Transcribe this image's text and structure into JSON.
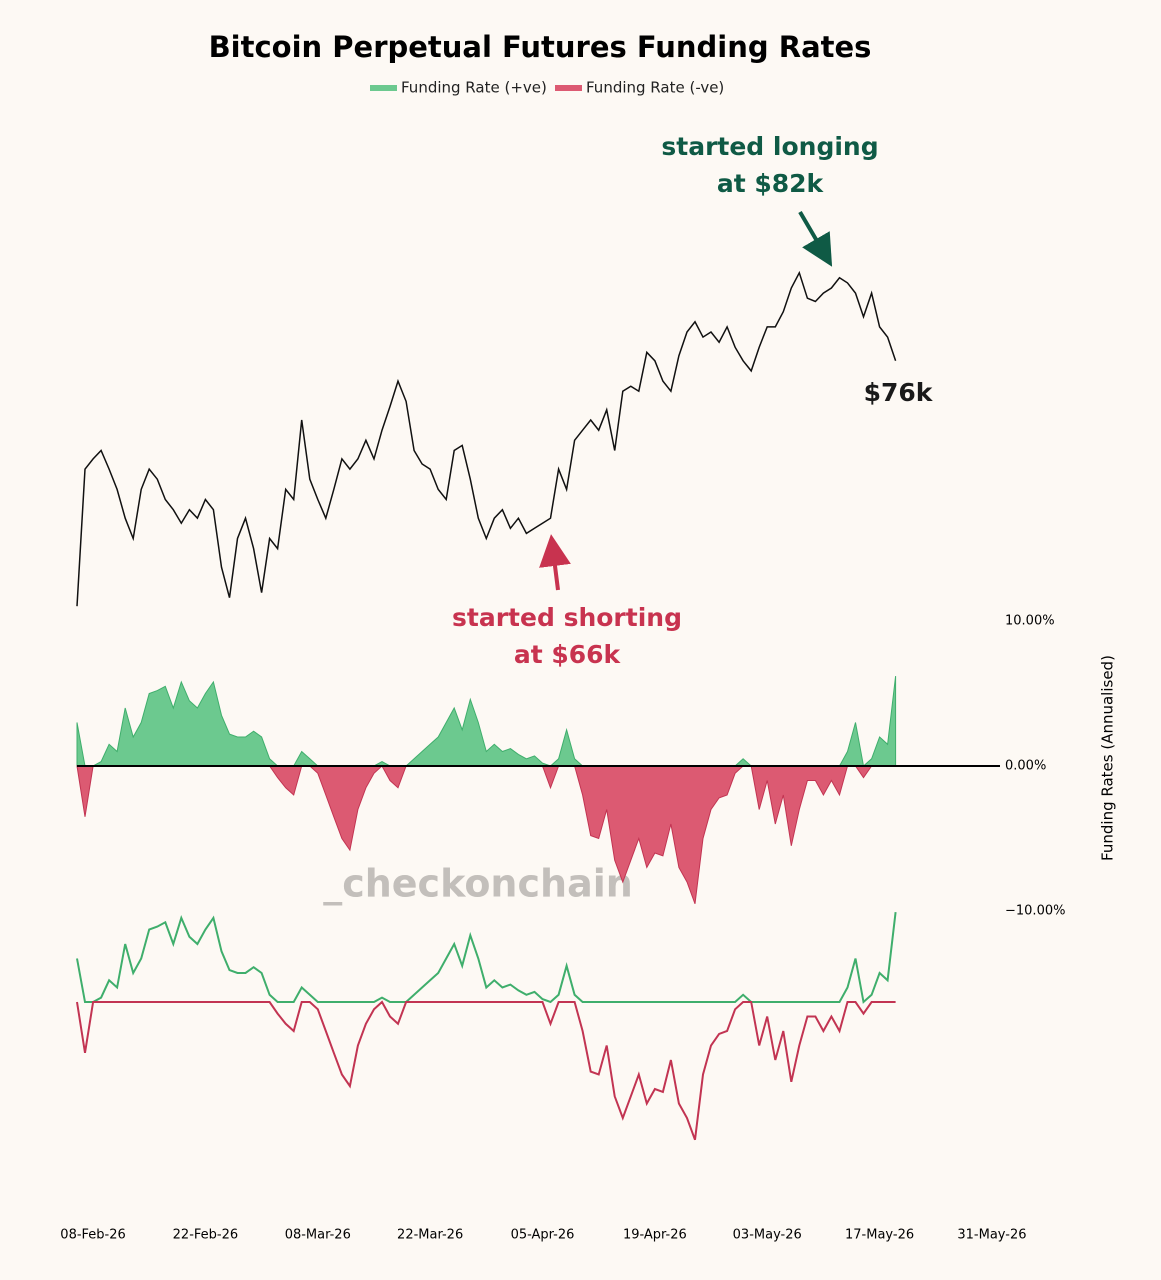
{
  "chart_data": {
    "type": "line",
    "title": "Bitcoin Perpetual Futures Funding Rates",
    "annotations": {
      "longing": [
        "started longing",
        "at $82k"
      ],
      "shorting": [
        "started shorting",
        "at $66k"
      ],
      "last": "$76k"
    },
    "watermark": "_checkonchain",
    "y2label": "Funding Rates (Annualised)",
    "xlim": [
      "2026-02-06",
      "2026-06-02"
    ],
    "xticks": [
      {
        "value": "2026-02-08",
        "label": "08-Feb-26"
      },
      {
        "value": "2026-02-22",
        "label": "22-Feb-26"
      },
      {
        "value": "2026-03-08",
        "label": "08-Mar-26"
      },
      {
        "value": "2026-03-22",
        "label": "22-Mar-26"
      },
      {
        "value": "2026-04-05",
        "label": "05-Apr-26"
      },
      {
        "value": "2026-04-19",
        "label": "19-Apr-26"
      },
      {
        "value": "2026-05-03",
        "label": "03-May-26"
      },
      {
        "value": "2026-05-17",
        "label": "17-May-26"
      },
      {
        "value": "2026-05-31",
        "label": "31-May-26"
      }
    ],
    "y2lim": [
      -10,
      10
    ],
    "y2ticks": [
      {
        "value": 10,
        "label": "10.00%"
      },
      {
        "value": 0,
        "label": "0.00%"
      },
      {
        "value": -10,
        "label": "−10.00%"
      }
    ],
    "x": [
      "2026-02-06",
      "2026-02-07",
      "2026-02-08",
      "2026-02-09",
      "2026-02-10",
      "2026-02-11",
      "2026-02-12",
      "2026-02-13",
      "2026-02-14",
      "2026-02-15",
      "2026-02-16",
      "2026-02-17",
      "2026-02-18",
      "2026-02-19",
      "2026-02-20",
      "2026-02-21",
      "2026-02-22",
      "2026-02-23",
      "2026-02-24",
      "2026-02-25",
      "2026-02-26",
      "2026-02-27",
      "2026-02-28",
      "2026-03-01",
      "2026-03-02",
      "2026-03-03",
      "2026-03-04",
      "2026-03-05",
      "2026-03-06",
      "2026-03-07",
      "2026-03-08",
      "2026-03-09",
      "2026-03-10",
      "2026-03-11",
      "2026-03-12",
      "2026-03-13",
      "2026-03-14",
      "2026-03-15",
      "2026-03-16",
      "2026-03-17",
      "2026-03-18",
      "2026-03-19",
      "2026-03-20",
      "2026-03-21",
      "2026-03-22",
      "2026-03-23",
      "2026-03-24",
      "2026-03-25",
      "2026-03-26",
      "2026-03-27",
      "2026-03-28",
      "2026-03-29",
      "2026-03-30",
      "2026-03-31",
      "2026-04-01",
      "2026-04-02",
      "2026-04-03",
      "2026-04-04",
      "2026-04-05",
      "2026-04-06",
      "2026-04-07",
      "2026-04-08",
      "2026-04-09",
      "2026-04-10",
      "2026-04-11",
      "2026-04-12",
      "2026-04-13",
      "2026-04-14",
      "2026-04-15",
      "2026-04-16",
      "2026-04-17",
      "2026-04-18",
      "2026-04-19",
      "2026-04-20",
      "2026-04-21",
      "2026-04-22",
      "2026-04-23",
      "2026-04-24",
      "2026-04-25",
      "2026-04-26",
      "2026-04-27",
      "2026-04-28",
      "2026-04-29",
      "2026-04-30",
      "2026-05-01",
      "2026-05-02",
      "2026-05-03",
      "2026-05-04",
      "2026-05-05",
      "2026-05-06",
      "2026-05-07",
      "2026-05-08",
      "2026-05-09",
      "2026-05-10",
      "2026-05-11",
      "2026-05-12",
      "2026-05-13",
      "2026-05-14",
      "2026-05-15",
      "2026-05-16",
      "2026-05-17",
      "2026-05-18",
      "2026-05-19"
    ],
    "price": {
      "color": "#111111",
      "ylim": [
        60,
        86
      ],
      "values": [
        62,
        70.1,
        70.7,
        71.2,
        70.1,
        68.9,
        67.2,
        66,
        68.9,
        70.1,
        69.5,
        68.3,
        67.7,
        66.9,
        67.7,
        67.2,
        68.3,
        67.7,
        64.3,
        62.5,
        66,
        67.2,
        65.4,
        62.8,
        66,
        65.4,
        68.9,
        68.3,
        73,
        69.5,
        68.3,
        67.2,
        68.9,
        70.7,
        70.1,
        70.7,
        71.8,
        70.7,
        72.4,
        73.8,
        75.3,
        74.1,
        71.2,
        70.4,
        70.1,
        68.9,
        68.3,
        71.2,
        71.5,
        69.5,
        67.2,
        66,
        67.2,
        67.7,
        66.6,
        67.2,
        66.3,
        66.6,
        66.9,
        67.2,
        70.1,
        68.9,
        71.8,
        72.4,
        73,
        72.4,
        73.6,
        71.2,
        74.7,
        75,
        74.7,
        77,
        76.5,
        75.3,
        74.7,
        76.8,
        78.2,
        78.8,
        77.9,
        78.2,
        77.6,
        78.5,
        77.3,
        76.5,
        75.9,
        77.3,
        78.5,
        78.5,
        79.4,
        80.8,
        81.7,
        80.2,
        80,
        80.5,
        80.8,
        81.4,
        81.1,
        80.5,
        79.1,
        80.5,
        78.5,
        77.9,
        76.5
      ]
    },
    "series": [
      {
        "name": "Funding Rate (+ve)",
        "color": "#3fae6c",
        "fill": "#6cc98f",
        "axis": "y2",
        "values": [
          3,
          0,
          0,
          0.3,
          1.5,
          1,
          4,
          2,
          3,
          5,
          5.2,
          5.5,
          4,
          5.8,
          4.5,
          4,
          5,
          5.8,
          3.5,
          2.2,
          2,
          2,
          2.4,
          2,
          0.5,
          0,
          0,
          0,
          1,
          0.5,
          0,
          0,
          0,
          0,
          0,
          0,
          0,
          0,
          0.3,
          0,
          0,
          0,
          0.5,
          1,
          1.5,
          2,
          3,
          4,
          2.5,
          4.6,
          3,
          1,
          1.5,
          1,
          1.2,
          0.8,
          0.5,
          0.7,
          0.2,
          0,
          0.5,
          2.5,
          0.5,
          0,
          0,
          0,
          0,
          0,
          0,
          0,
          0,
          0,
          0,
          0,
          0,
          0,
          0,
          0,
          0,
          0,
          0,
          0,
          0,
          0.5,
          0,
          0,
          0,
          0,
          0,
          0,
          0,
          0,
          0,
          0,
          0,
          0,
          1,
          3,
          0,
          0.5,
          2,
          1.5,
          6.2
        ]
      },
      {
        "name": "Funding Rate (-ve)",
        "color": "#c23452",
        "fill": "#dc5a72",
        "axis": "y2",
        "values": [
          0,
          -3.5,
          0,
          0,
          0,
          0,
          0,
          0,
          0,
          0,
          0,
          0,
          0,
          0,
          0,
          0,
          0,
          0,
          0,
          0,
          0,
          0,
          0,
          0,
          0,
          -0.8,
          -1.5,
          -2,
          0,
          0,
          -0.5,
          -2,
          -3.5,
          -5,
          -5.8,
          -3,
          -1.5,
          -0.5,
          0,
          -1,
          -1.5,
          0,
          0,
          0,
          0,
          0,
          0,
          0,
          0,
          0,
          0,
          0,
          0,
          0,
          0,
          0,
          0,
          0,
          0,
          -1.5,
          0,
          0,
          0,
          -2,
          -4.8,
          -5,
          -3,
          -6.5,
          -8,
          -6.5,
          -5,
          -7,
          -6,
          -6.2,
          -4,
          -7,
          -8,
          -9.5,
          -5,
          -3,
          -2.2,
          -2,
          -0.5,
          0,
          0,
          -3,
          -1,
          -4,
          -2,
          -5.5,
          -3,
          -1,
          -1,
          -2,
          -1,
          -2,
          0,
          0,
          -0.8,
          0,
          0,
          0,
          0
        ]
      }
    ]
  }
}
